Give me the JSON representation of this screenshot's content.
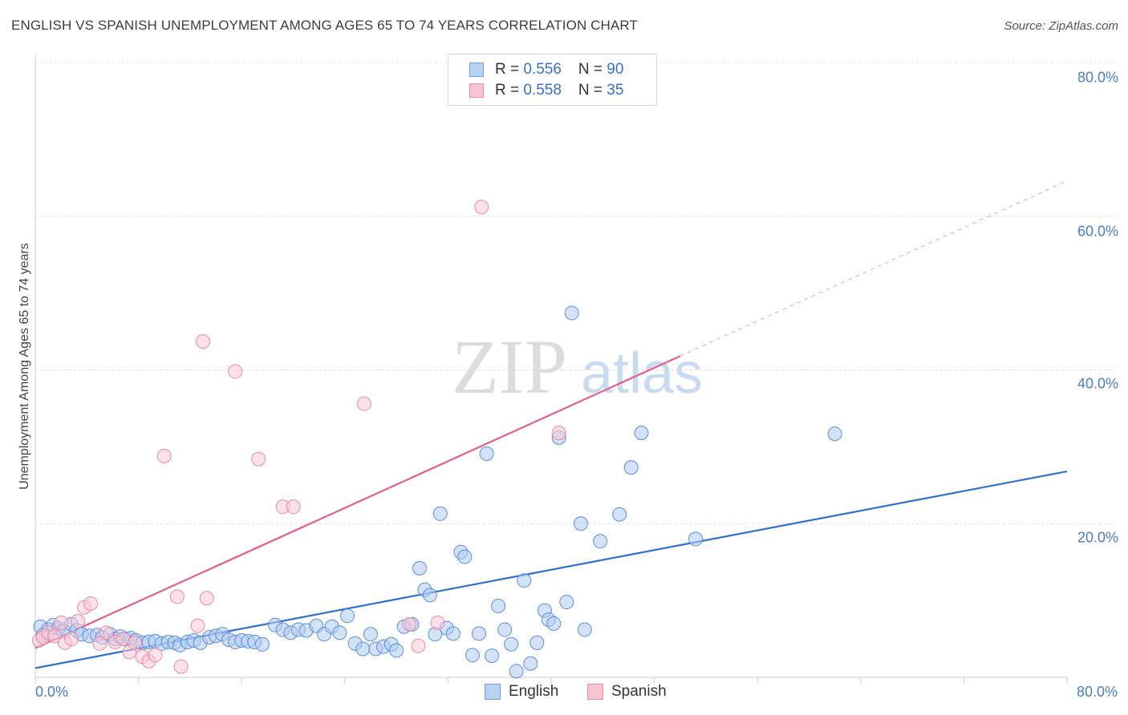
{
  "chart_data": {
    "type": "scatter",
    "title": "ENGLISH VS SPANISH UNEMPLOYMENT AMONG AGES 65 TO 74 YEARS CORRELATION CHART",
    "source": "Source: ZipAtlas.com",
    "ylabel": "Unemployment Among Ages 65 to 74 years",
    "xlabel": "",
    "xlim": [
      0,
      80
    ],
    "ylim": [
      0,
      80
    ],
    "x_tick_labels": [
      "0.0%",
      "80.0%"
    ],
    "y_ticks": [
      {
        "value": 20,
        "label": "20.0%"
      },
      {
        "value": 40,
        "label": "40.0%"
      },
      {
        "value": 60,
        "label": "60.0%"
      },
      {
        "value": 80,
        "label": "80.0%"
      }
    ],
    "grid": true,
    "watermark": {
      "part1": "ZIP",
      "part2": "atlas"
    },
    "legend": {
      "r_label": "R = ",
      "n_label": "N = ",
      "entries": [
        {
          "name": "English",
          "r": "0.556",
          "n": "90",
          "color": "#6fa0de",
          "fill": "#b9d2f2"
        },
        {
          "name": "Spanish",
          "r": "0.558",
          "n": "35",
          "color": "#e88aa6",
          "fill": "#f6c4d3"
        }
      ]
    },
    "series": [
      {
        "name": "English",
        "color": "#5b8fd6",
        "fill": "#aecbf0",
        "trend": {
          "x0": 0,
          "y0": 1.2,
          "x1": 80,
          "y1": 26.8,
          "color": "#2f6fd0"
        },
        "points": [
          [
            0.4,
            6.6
          ],
          [
            1.0,
            6.2
          ],
          [
            1.4,
            6.8
          ],
          [
            1.8,
            6.4
          ],
          [
            2.2,
            6.0
          ],
          [
            2.8,
            6.9
          ],
          [
            3.2,
            6.1
          ],
          [
            3.6,
            5.6
          ],
          [
            4.2,
            5.4
          ],
          [
            4.8,
            5.5
          ],
          [
            5.2,
            5.2
          ],
          [
            5.8,
            5.6
          ],
          [
            6.2,
            5.0
          ],
          [
            6.6,
            5.3
          ],
          [
            7.0,
            5.0
          ],
          [
            7.4,
            5.1
          ],
          [
            7.8,
            4.8
          ],
          [
            8.3,
            4.5
          ],
          [
            8.8,
            4.6
          ],
          [
            9.3,
            4.7
          ],
          [
            9.8,
            4.4
          ],
          [
            10.3,
            4.6
          ],
          [
            10.8,
            4.5
          ],
          [
            11.2,
            4.2
          ],
          [
            11.8,
            4.6
          ],
          [
            12.3,
            4.8
          ],
          [
            12.8,
            4.5
          ],
          [
            13.5,
            5.2
          ],
          [
            14.0,
            5.4
          ],
          [
            14.5,
            5.6
          ],
          [
            15.0,
            4.9
          ],
          [
            15.5,
            4.6
          ],
          [
            16.0,
            4.8
          ],
          [
            16.5,
            4.7
          ],
          [
            17.0,
            4.6
          ],
          [
            17.6,
            4.3
          ],
          [
            18.6,
            6.8
          ],
          [
            19.2,
            6.2
          ],
          [
            19.8,
            5.8
          ],
          [
            20.4,
            6.2
          ],
          [
            21.0,
            6.1
          ],
          [
            21.8,
            6.7
          ],
          [
            22.4,
            5.6
          ],
          [
            23.0,
            6.6
          ],
          [
            23.6,
            5.8
          ],
          [
            24.2,
            8.0
          ],
          [
            24.8,
            4.4
          ],
          [
            25.4,
            3.7
          ],
          [
            26.0,
            5.6
          ],
          [
            26.4,
            3.7
          ],
          [
            27.0,
            4.0
          ],
          [
            27.6,
            4.3
          ],
          [
            28.0,
            3.5
          ],
          [
            28.6,
            6.6
          ],
          [
            29.2,
            6.9
          ],
          [
            29.8,
            14.2
          ],
          [
            30.2,
            11.4
          ],
          [
            30.6,
            10.7
          ],
          [
            31.0,
            5.6
          ],
          [
            31.4,
            21.3
          ],
          [
            31.9,
            6.4
          ],
          [
            32.4,
            5.7
          ],
          [
            33.0,
            16.3
          ],
          [
            33.3,
            15.7
          ],
          [
            33.9,
            2.9
          ],
          [
            34.4,
            5.7
          ],
          [
            35.0,
            29.1
          ],
          [
            35.4,
            2.8
          ],
          [
            35.9,
            9.3
          ],
          [
            36.4,
            6.2
          ],
          [
            36.9,
            4.3
          ],
          [
            37.3,
            0.8
          ],
          [
            37.9,
            12.6
          ],
          [
            38.4,
            1.8
          ],
          [
            38.9,
            4.5
          ],
          [
            39.5,
            8.7
          ],
          [
            39.8,
            7.5
          ],
          [
            40.2,
            7.0
          ],
          [
            40.6,
            31.2
          ],
          [
            41.2,
            9.8
          ],
          [
            41.6,
            47.4
          ],
          [
            42.3,
            20.0
          ],
          [
            42.6,
            6.2
          ],
          [
            43.8,
            17.7
          ],
          [
            45.3,
            21.2
          ],
          [
            46.2,
            27.3
          ],
          [
            47.0,
            31.8
          ],
          [
            51.2,
            18.0
          ],
          [
            62.0,
            31.7
          ],
          [
            0.6,
            5.5
          ]
        ]
      },
      {
        "name": "Spanish",
        "color": "#e88aa6",
        "fill": "#f7c9d7",
        "trend": {
          "x0": 0,
          "y0": 3.8,
          "x1": 50,
          "y1": 41.8,
          "color": "#e0608a"
        },
        "trend_extension": {
          "x1": 80,
          "y1": 64.6
        },
        "points": [
          [
            0.3,
            4.8
          ],
          [
            0.6,
            5.2
          ],
          [
            1.0,
            5.8
          ],
          [
            1.5,
            5.4
          ],
          [
            2.0,
            7.1
          ],
          [
            2.3,
            4.5
          ],
          [
            2.8,
            5.0
          ],
          [
            3.3,
            7.3
          ],
          [
            3.8,
            9.1
          ],
          [
            4.3,
            9.6
          ],
          [
            5.0,
            4.4
          ],
          [
            5.5,
            5.8
          ],
          [
            6.2,
            4.6
          ],
          [
            6.8,
            5.0
          ],
          [
            7.3,
            3.3
          ],
          [
            7.7,
            4.5
          ],
          [
            8.3,
            2.7
          ],
          [
            8.8,
            2.1
          ],
          [
            9.3,
            2.9
          ],
          [
            10.0,
            28.8
          ],
          [
            11.0,
            10.5
          ],
          [
            11.3,
            1.4
          ],
          [
            12.6,
            6.7
          ],
          [
            13.0,
            43.7
          ],
          [
            13.3,
            10.3
          ],
          [
            15.5,
            39.8
          ],
          [
            17.3,
            28.4
          ],
          [
            19.2,
            22.2
          ],
          [
            20.0,
            22.2
          ],
          [
            25.5,
            35.6
          ],
          [
            29.0,
            6.9
          ],
          [
            29.7,
            4.1
          ],
          [
            31.2,
            7.1
          ],
          [
            34.6,
            61.2
          ],
          [
            40.6,
            31.8
          ]
        ]
      }
    ]
  }
}
